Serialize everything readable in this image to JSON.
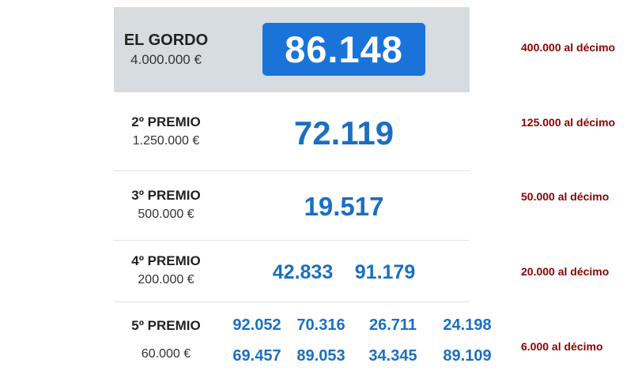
{
  "prizes": [
    {
      "name": "EL GORDO",
      "amount": "4.000.000 €",
      "numbers": [
        "86.148"
      ],
      "per_decimo": "400.000 al décimo"
    },
    {
      "name": "2º PREMIO",
      "amount": "1.250.000 €",
      "numbers": [
        "72.119"
      ],
      "per_decimo": "125.000 al décimo"
    },
    {
      "name": "3º PREMIO",
      "amount": "500.000 €",
      "numbers": [
        "19.517"
      ],
      "per_decimo": "50.000 al décimo"
    },
    {
      "name": "4º PREMIO",
      "amount": "200.000 €",
      "numbers": [
        "42.833",
        "91.179"
      ],
      "per_decimo": "20.000 al décimo"
    },
    {
      "name": "5º PREMIO",
      "amount": "60.000 €",
      "numbers": [
        "92.052",
        "70.316",
        "26.711",
        "24.198",
        "69.457",
        "89.053",
        "34.345",
        "89.109"
      ],
      "per_decimo": "6.000 al décimo"
    }
  ],
  "colors": {
    "gordo_box": "#1a73d9",
    "numbers": "#1b6fc2",
    "decimo": "#8b0000",
    "gordo_bg": "#d7dce0"
  }
}
